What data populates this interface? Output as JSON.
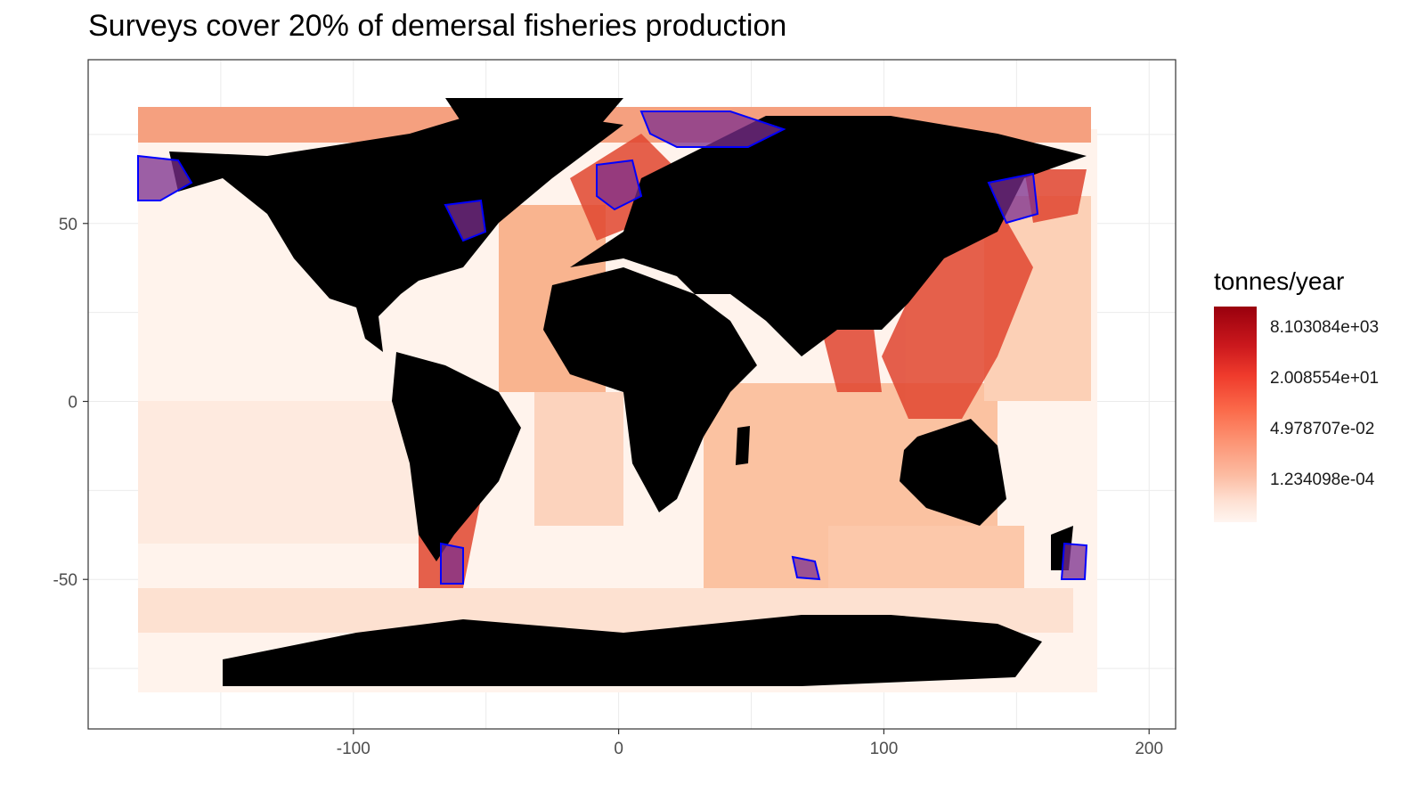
{
  "title": "Surveys cover 20% of demersal fisheries production",
  "legend": {
    "title": "tonnes/year",
    "labels": [
      "8.103084e+03",
      "2.008554e+01",
      "4.978707e-02",
      "1.234098e-04"
    ],
    "colors": [
      "#99000d",
      "#cb181d",
      "#ef3b2c",
      "#fb6a4a",
      "#fc9272",
      "#fcbba1",
      "#fee0d2",
      "#fff5f0"
    ]
  },
  "axes": {
    "x_ticks": [
      "-100",
      "0",
      "100",
      "200"
    ],
    "y_ticks": [
      "50",
      "0",
      "-50"
    ],
    "x_range": [
      -200,
      210
    ],
    "y_range": [
      -92,
      96
    ]
  },
  "colors": {
    "land": "#000000",
    "survey_outline": "#0000ff",
    "survey_fill": "#7b2d8e",
    "grid": "#ebebeb"
  }
}
